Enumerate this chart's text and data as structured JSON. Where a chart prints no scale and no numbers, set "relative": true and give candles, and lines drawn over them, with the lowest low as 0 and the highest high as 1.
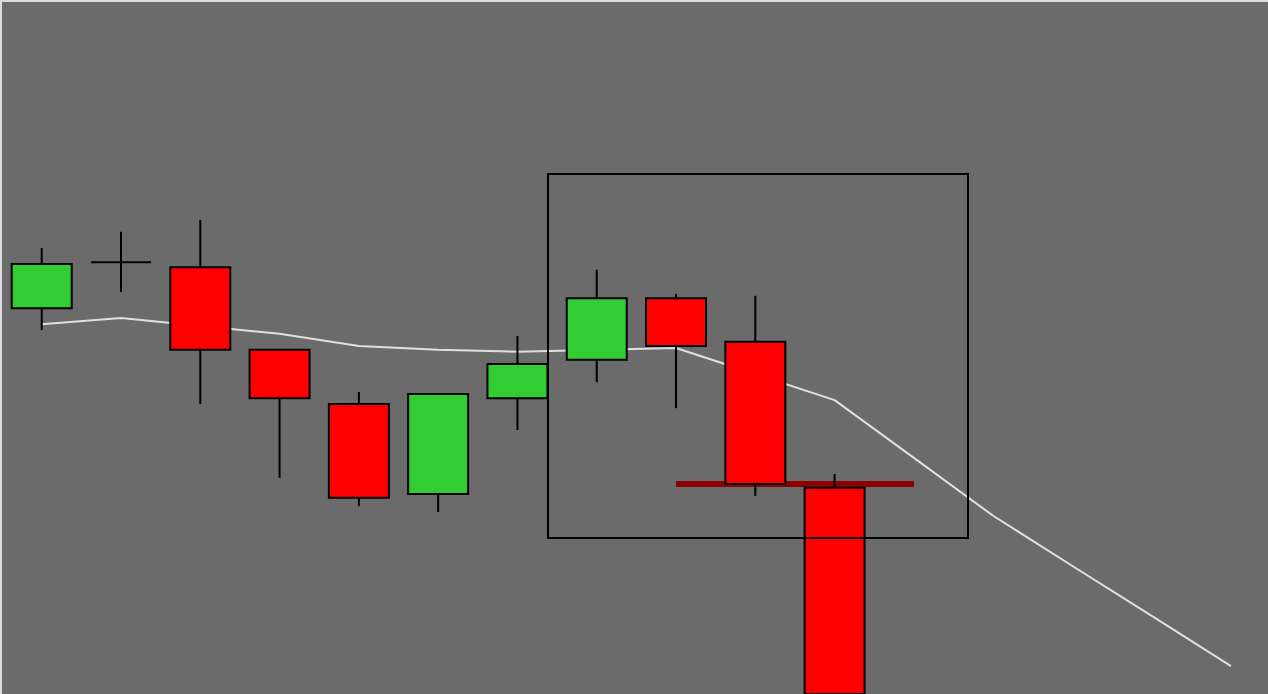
{
  "chart_data": {
    "type": "candlestick",
    "relative": true,
    "categories": [
      null,
      null,
      null,
      null,
      null,
      null,
      null,
      null,
      null,
      null,
      null,
      null,
      null,
      null,
      null,
      null
    ],
    "ohlc": [
      [
        0.814,
        0.941,
        0.768,
        0.907
      ],
      [
        0.911,
        0.975,
        0.848,
        0.911
      ],
      [
        0.9,
        1.0,
        0.612,
        0.726
      ],
      [
        0.726,
        0.726,
        0.456,
        0.624
      ],
      [
        0.612,
        0.637,
        0.397,
        0.414
      ],
      [
        0.422,
        0.633,
        0.384,
        0.633
      ],
      [
        0.624,
        0.755,
        0.557,
        0.696
      ],
      [
        0.705,
        0.895,
        0.658,
        0.835
      ],
      [
        0.835,
        0.844,
        0.603,
        0.734
      ],
      [
        0.743,
        0.84,
        0.418,
        0.443
      ],
      [
        0.435,
        0.464,
        0.0,
        0.0
      ],
      null,
      null,
      null,
      null,
      null
    ],
    "colors": [
      "#32cd32",
      "#000000",
      "#ff0000",
      "#ff0000",
      "#ff0000",
      "#32cd32",
      "#32cd32",
      "#32cd32",
      "#ff0000",
      "#ff0000",
      "#ff0000",
      null,
      null,
      null,
      null,
      null
    ],
    "series": [
      {
        "type": "line",
        "color": "#e0e0e0",
        "values": [
          0.78,
          0.793,
          null,
          0.76,
          0.734,
          0.726,
          0.722,
          null,
          0.73,
          null,
          0.62,
          0.498,
          0.376,
          0.27,
          0.165,
          0.059
        ]
      },
      {
        "type": "line",
        "color": "#8b0000",
        "values": [
          null,
          null,
          null,
          null,
          null,
          null,
          null,
          null,
          0.443,
          0.443,
          0.443,
          0.443,
          null,
          null,
          null,
          null
        ]
      }
    ]
  }
}
